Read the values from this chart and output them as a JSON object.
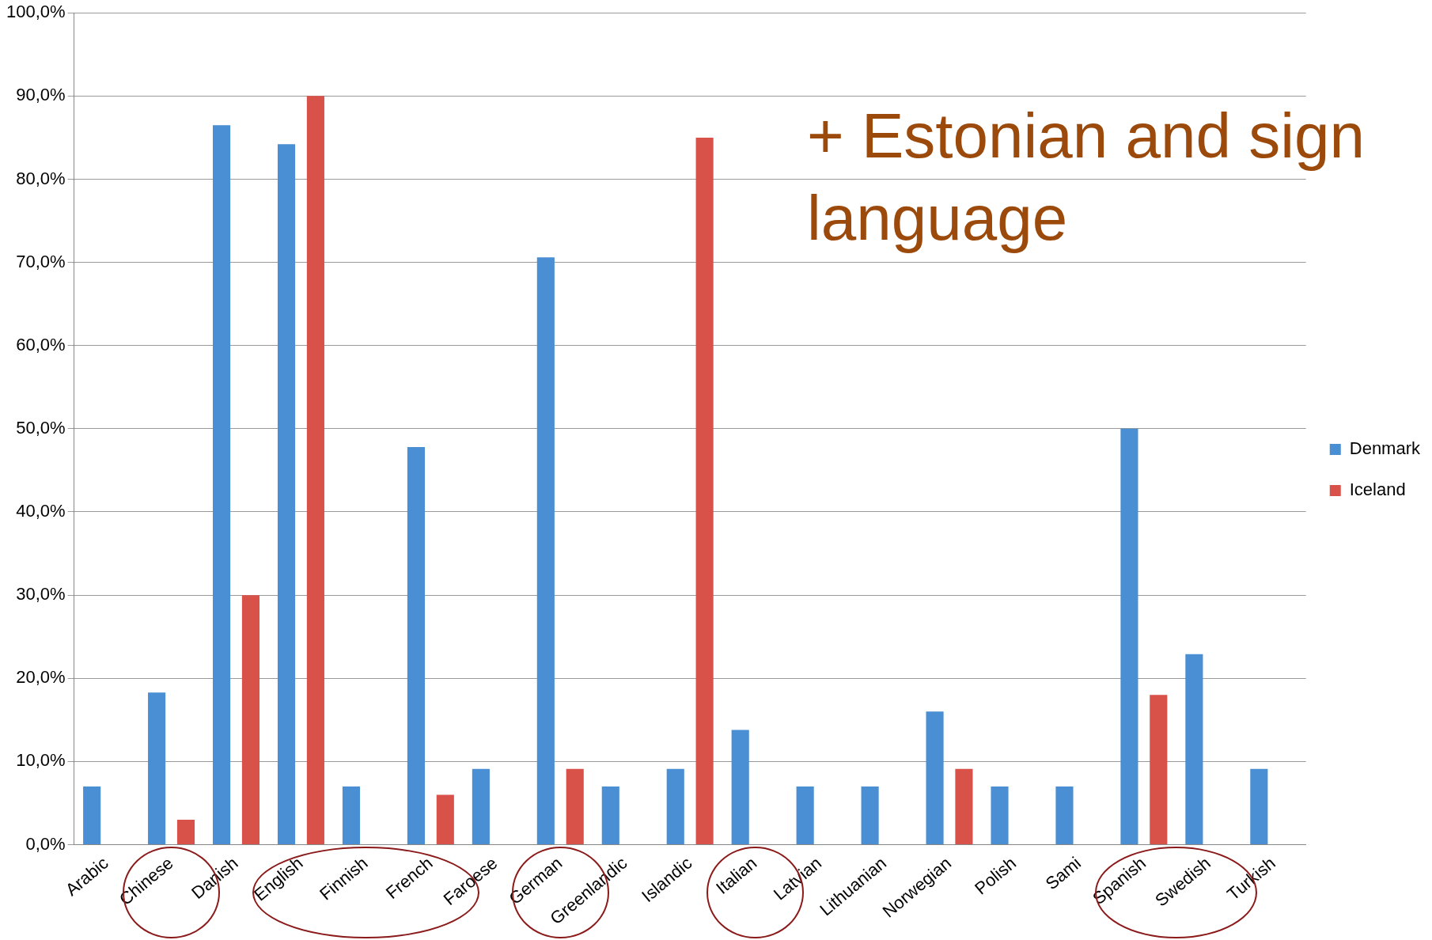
{
  "chart_data": {
    "type": "bar",
    "categories": [
      "Arabic",
      "Chinese",
      "Danish",
      "English",
      "Finnish",
      "French",
      "Faroese",
      "German",
      "Greenlandic",
      "Islandic",
      "Italian",
      "Latvian",
      "Lithuanian",
      "Norwegian",
      "Polish",
      "Sami",
      "Spanish",
      "Swedish",
      "Turkish"
    ],
    "series": [
      {
        "name": "Denmark",
        "color": "#4a8fd3",
        "values": [
          7.0,
          18.3,
          86.5,
          84.2,
          7.0,
          47.8,
          9.1,
          70.6,
          7.0,
          9.1,
          13.8,
          7.0,
          7.0,
          16.0,
          7.0,
          7.0,
          50.0,
          22.9,
          9.1
        ]
      },
      {
        "name": "Iceland",
        "color": "#d8524a",
        "values": [
          null,
          3.0,
          30.0,
          90.0,
          null,
          6.0,
          null,
          9.1,
          null,
          85.0,
          null,
          null,
          null,
          9.1,
          null,
          null,
          18.0,
          null,
          null
        ]
      }
    ],
    "ylim": [
      0,
      100
    ],
    "yticks": [
      {
        "value": 0,
        "label": "0,0%"
      },
      {
        "value": 10,
        "label": "10,0%"
      },
      {
        "value": 20,
        "label": "20,0%"
      },
      {
        "value": 30,
        "label": "30,0%"
      },
      {
        "value": 40,
        "label": "40,0%"
      },
      {
        "value": 50,
        "label": "50,0%"
      },
      {
        "value": 60,
        "label": "60,0%"
      },
      {
        "value": 70,
        "label": "70,0%"
      },
      {
        "value": 80,
        "label": "80,0%"
      },
      {
        "value": 90,
        "label": "90,0%"
      },
      {
        "value": 100,
        "label": "100,0%"
      }
    ],
    "grid": "y",
    "legend": "right",
    "annotations": [
      "+ Estonian and sign language"
    ]
  }
}
